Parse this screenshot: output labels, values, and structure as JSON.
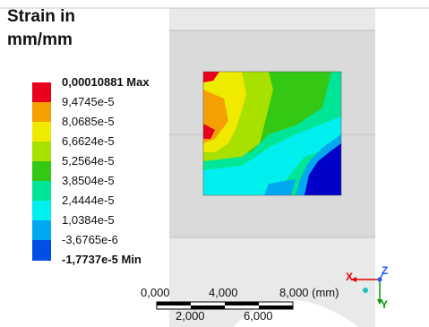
{
  "legend": {
    "title_line1": "Strain in",
    "title_line2": "mm/mm",
    "ticks": [
      {
        "value": "0,00010881 Max",
        "color": "#e8001c"
      },
      {
        "value": "9,4745e-5",
        "color": "#f5a000"
      },
      {
        "value": "8,0685e-5",
        "color": "#f0ea00"
      },
      {
        "value": "6,6624e-5",
        "color": "#a8e000"
      },
      {
        "value": "5,2564e-5",
        "color": "#32c814"
      },
      {
        "value": "3,8504e-5",
        "color": "#00e696"
      },
      {
        "value": "2,4444e-5",
        "color": "#00f0f0"
      },
      {
        "value": "1,0384e-5",
        "color": "#00a8f0"
      },
      {
        "value": "-3,6765e-6",
        "color": "#0050e6"
      },
      {
        "value": "-1,7737e-5 Min",
        "color": "#0000c8"
      }
    ]
  },
  "scalebar": {
    "top_labels": [
      "0,000",
      "4,000",
      "8,000 (mm)"
    ],
    "bottom_labels": [
      "2,000",
      "6,000"
    ]
  },
  "triad": {
    "x": "X",
    "y": "Y",
    "z": "Z"
  },
  "colors": {
    "x_axis": "#e00000",
    "y_axis": "#009900",
    "z_axis": "#2255ff"
  }
}
